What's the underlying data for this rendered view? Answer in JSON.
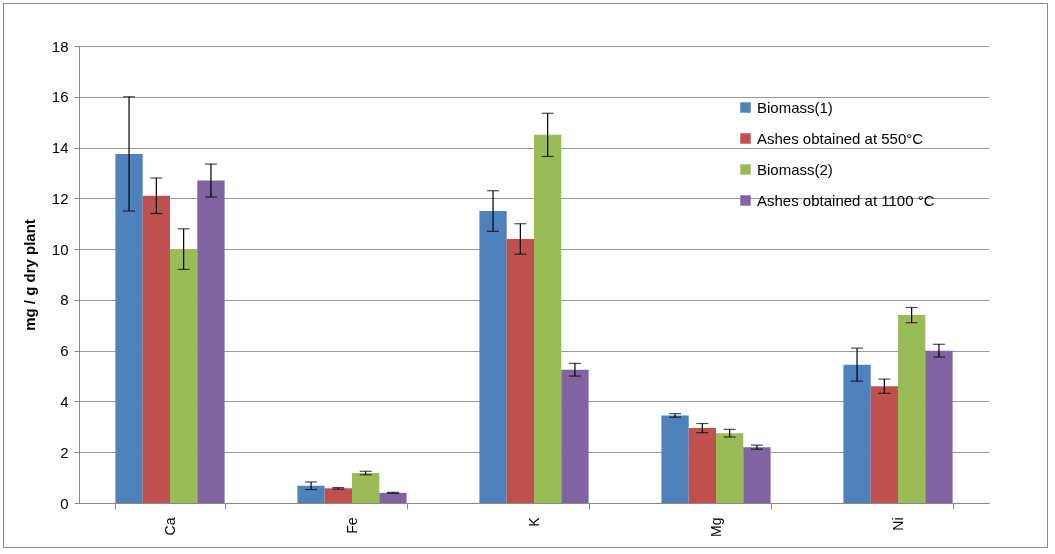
{
  "chart_data": {
    "type": "bar",
    "ylabel": "mg / g dry plant",
    "categories": [
      "Ca",
      "Fe",
      "K",
      "Mg",
      "Ni"
    ],
    "series": [
      {
        "name": "Biomass(1)",
        "color": "#4f81bd",
        "values": [
          13.75,
          0.68,
          11.5,
          3.45,
          5.45
        ],
        "errors": [
          2.25,
          0.15,
          0.8,
          0.07,
          0.65
        ]
      },
      {
        "name": "Ashes obtained at 550°C",
        "color": "#c0504d",
        "values": [
          12.1,
          0.58,
          10.4,
          2.95,
          4.6
        ],
        "errors": [
          0.7,
          0.03,
          0.6,
          0.18,
          0.28
        ]
      },
      {
        "name": "Biomass(2)",
        "color": "#9bbb59",
        "values": [
          10.0,
          1.18,
          14.5,
          2.75,
          7.4
        ],
        "errors": [
          0.8,
          0.07,
          0.85,
          0.15,
          0.3
        ]
      },
      {
        "name": "Ashes obtained at 1100 °C",
        "color": "#8064a2",
        "values": [
          12.7,
          0.4,
          5.25,
          2.2,
          6.0
        ],
        "errors": [
          0.65,
          0.02,
          0.25,
          0.08,
          0.25
        ]
      }
    ],
    "ylim": [
      0,
      18
    ],
    "yticks": [
      0,
      2,
      4,
      6,
      8,
      10,
      12,
      14,
      16,
      18
    ],
    "grid": "y",
    "legend": "top right"
  }
}
